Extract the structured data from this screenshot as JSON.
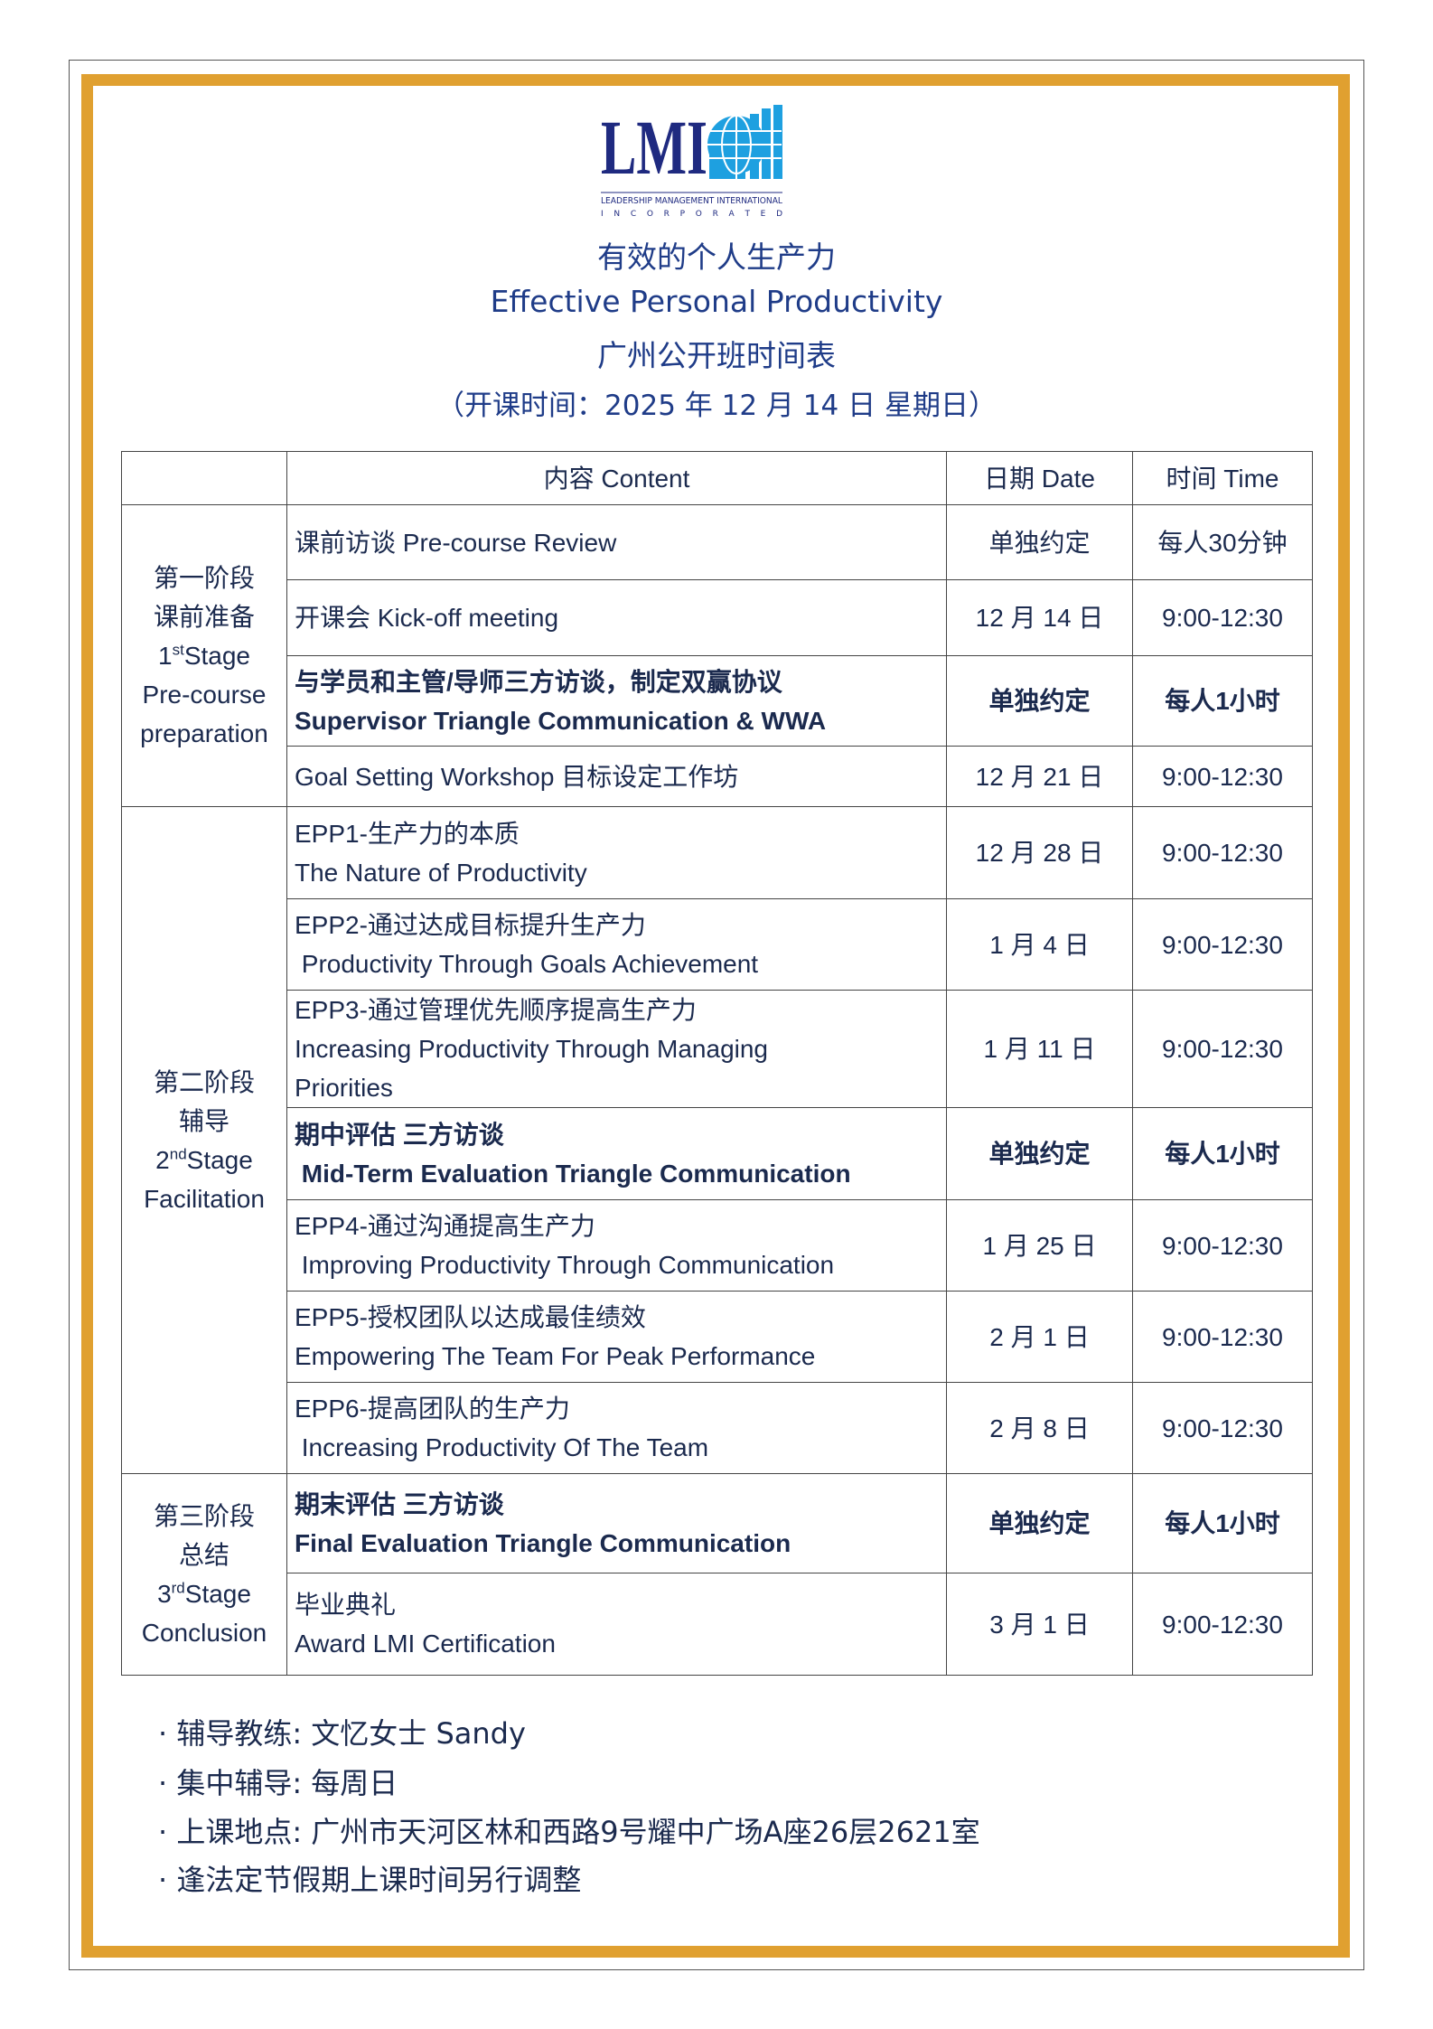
{
  "logo": {
    "text": "LMI",
    "line1": "LEADERSHIP MANAGEMENT INTERNATIONAL",
    "line2": "I N C O R P O R A T E D",
    "colors": {
      "navy": "#1f2a80",
      "blue": "#1ea0e0"
    }
  },
  "header": {
    "title_cn": "有效的个人生产力",
    "title_en": "Effective Personal Productivity",
    "subtitle": "广州公开班时间表",
    "start": "（开课时间：2025 年 12 月 14 日 星期日）"
  },
  "table": {
    "headers": {
      "stage": "",
      "content": "内容 Content",
      "date": "日期 Date",
      "time": "时间 Time"
    },
    "stages": [
      {
        "cn": "第一阶段",
        "cn2": "课前准备",
        "num": "1",
        "sup": "st",
        "en": "Stage",
        "en2": "Pre-course",
        "en3": "preparation"
      },
      {
        "cn": "第二阶段",
        "cn2": "辅导",
        "num": "2",
        "sup": "nd",
        "en": "Stage",
        "en2": "Facilitation"
      },
      {
        "cn": "第三阶段",
        "cn2": "总结",
        "num": "3",
        "sup": "rd",
        "en": "Stage",
        "en2": "Conclusion"
      }
    ],
    "rows": [
      {
        "l1": "课前访谈 Pre-course Review",
        "l2": "",
        "date": "单独约定",
        "time": "每人30分钟"
      },
      {
        "l1": "开课会 Kick-off meeting",
        "l2": "",
        "date": "12 月 14 日",
        "time": "9:00-12:30"
      },
      {
        "l1": "与学员和主管/导师三方访谈，制定双赢协议",
        "l2": "Supervisor Triangle Communication & WWA",
        "date": "单独约定",
        "time": "每人1小时",
        "bold": true
      },
      {
        "l1": "Goal Setting Workshop 目标设定工作坊",
        "l2": "",
        "date": "12 月 21 日",
        "time": "9:00-12:30"
      },
      {
        "l1": "EPP1-生产力的本质",
        "l2": "The Nature of Productivity",
        "date": "12 月 28 日",
        "time": "9:00-12:30"
      },
      {
        "l1": "EPP2-通过达成目标提升生产力",
        "l2": " Productivity Through Goals Achievement",
        "date": "1 月 4 日",
        "time": "9:00-12:30"
      },
      {
        "l1": "EPP3-通过管理优先顺序提高生产力",
        "l2": "Increasing Productivity Through Managing",
        "l3": "Priorities",
        "date": "1 月 11 日",
        "time": "9:00-12:30"
      },
      {
        "l1": "期中评估 三方访谈",
        "l2": " Mid-Term Evaluation Triangle Communication",
        "date": "单独约定",
        "time": "每人1小时",
        "bold": true
      },
      {
        "l1": "EPP4-通过沟通提高生产力",
        "l2": " Improving Productivity Through Communication",
        "date": "1 月 25 日",
        "time": "9:00-12:30"
      },
      {
        "l1": "EPP5-授权团队以达成最佳绩效",
        "l2": "Empowering The Team For Peak Performance",
        "date": "2 月 1 日",
        "time": "9:00-12:30"
      },
      {
        "l1": "EPP6-提高团队的生产力",
        "l2": " Increasing Productivity Of The Team",
        "date": "2 月 8 日",
        "time": "9:00-12:30"
      },
      {
        "l1": "期末评估 三方访谈",
        "l2": "Final Evaluation Triangle Communication",
        "date": "单独约定",
        "time": "每人1小时",
        "bold": true
      },
      {
        "l1": "毕业典礼",
        "l2": "Award LMI Certification",
        "date": "3 月 1 日",
        "time": "9:00-12:30"
      }
    ]
  },
  "notes": [
    "· 辅导教练: 文忆女士 Sandy",
    "· 集中辅导: 每周日",
    "· 上课地点: 广州市天河区林和西路9号耀中广场A座26层2621室",
    "· 逢法定节假期上课时间另行调整"
  ],
  "colors": {
    "gold": "#e0a030",
    "title": "#1f3c88",
    "text": "#1b2a4e"
  }
}
